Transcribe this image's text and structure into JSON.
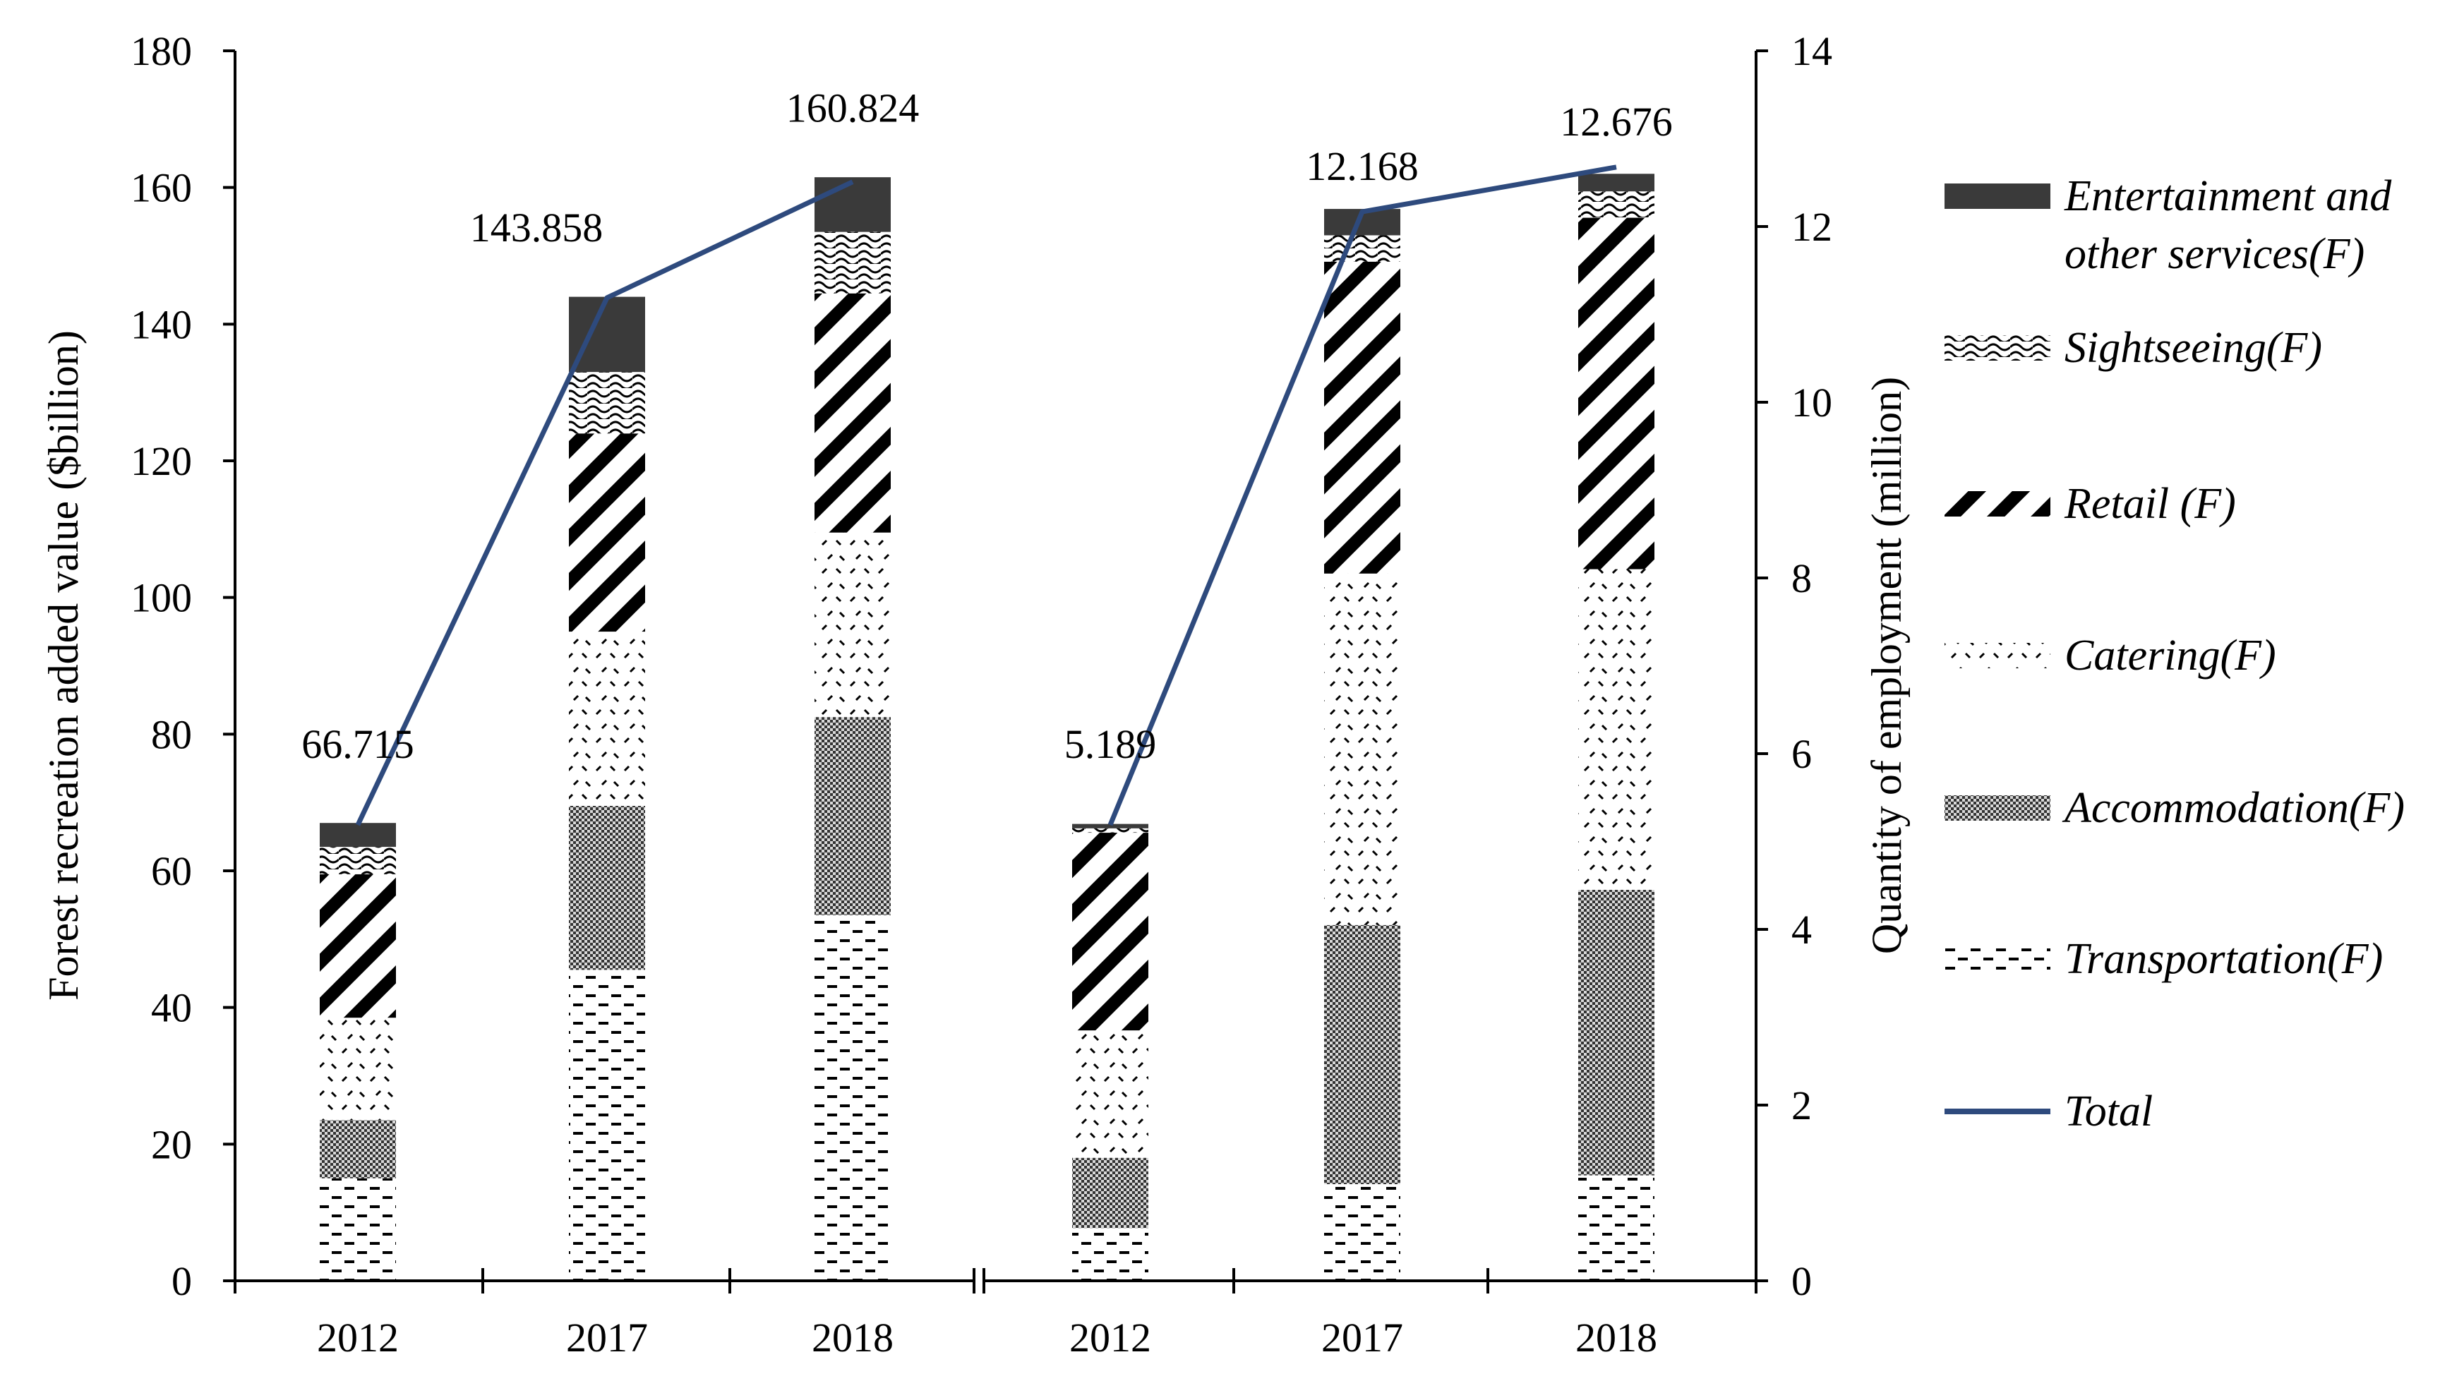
{
  "chart_data": {
    "type": "bar",
    "stacked": true,
    "categories_left": [
      "2012",
      "2017",
      "2018"
    ],
    "categories_right": [
      "2012",
      "2017",
      "2018"
    ],
    "y_left": {
      "label": "Forest recreation added value ($billion)",
      "min": 0,
      "max": 180,
      "step": 20,
      "ticks": [
        "0",
        "20",
        "40",
        "60",
        "80",
        "100",
        "120",
        "140",
        "160",
        "180"
      ]
    },
    "y_right": {
      "label": "Quantity of employment (million)",
      "min": 0,
      "max": 14,
      "step": 2,
      "ticks": [
        "0",
        "2",
        "4",
        "6",
        "8",
        "10",
        "12",
        "14"
      ]
    },
    "series": [
      {
        "name": "Transportation(F)",
        "pattern": "transport",
        "values_left": [
          15,
          45.5,
          53.5
        ],
        "values_right": [
          0.6,
          1.1,
          1.2
        ]
      },
      {
        "name": "Accommodation(F)",
        "pattern": "accommodation",
        "values_left": [
          8.5,
          24,
          29
        ],
        "values_right": [
          0.8,
          2.95,
          3.25
        ]
      },
      {
        "name": "Catering(F)",
        "pattern": "catering",
        "values_left": [
          15,
          25.5,
          27
        ],
        "values_right": [
          1.45,
          4.0,
          3.65
        ]
      },
      {
        "name": "Retail (F)",
        "pattern": "retail",
        "values_left": [
          21,
          29,
          35
        ],
        "values_right": [
          2.25,
          3.55,
          4.0
        ]
      },
      {
        "name": "Sightseeing(F)",
        "pattern": "sightseeing",
        "values_left": [
          4,
          9,
          9
        ],
        "values_right": [
          0.05,
          0.3,
          0.3
        ]
      },
      {
        "name": "Entertainment and other services(F)",
        "pattern": "entertainment",
        "values_left": [
          3.5,
          11,
          8
        ],
        "values_right": [
          0.05,
          0.3,
          0.2
        ]
      }
    ],
    "totals": {
      "name": "Total",
      "color": "#2e4a7d",
      "values_left": [
        66.715,
        143.858,
        160.824
      ],
      "values_right": [
        5.189,
        12.168,
        12.676
      ],
      "labels_left": [
        "66.715",
        "143.858",
        "160.824"
      ],
      "labels_right": [
        "5.189",
        "12.168",
        "12.676"
      ]
    },
    "legend": {
      "position": "right",
      "items": [
        {
          "pattern": "entertainment",
          "lines": [
            "Entertainment and",
            "other services(F)"
          ]
        },
        {
          "pattern": "sightseeing",
          "lines": [
            "Sightseeing(F)"
          ]
        },
        {
          "pattern": "retail",
          "lines": [
            "Retail (F)"
          ]
        },
        {
          "pattern": "catering",
          "lines": [
            "Catering(F)"
          ]
        },
        {
          "pattern": "accommodation",
          "lines": [
            "Accommodation(F)"
          ]
        },
        {
          "pattern": "transport",
          "lines": [
            "Transportation(F)"
          ]
        },
        {
          "pattern": "line",
          "lines": [
            "Total"
          ]
        }
      ]
    },
    "grid": false
  }
}
